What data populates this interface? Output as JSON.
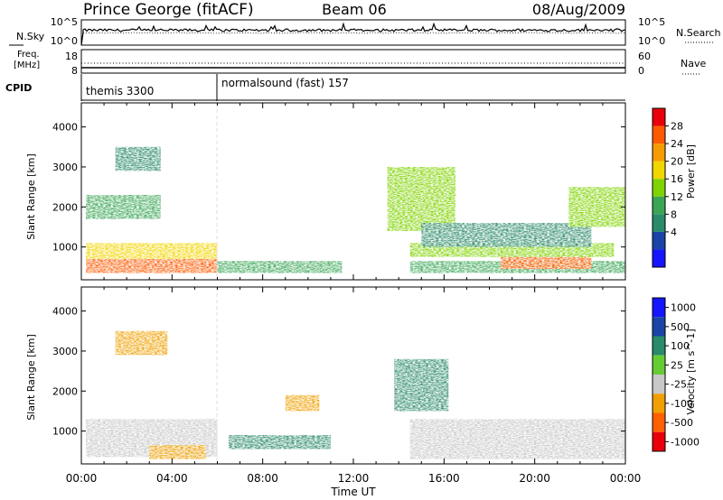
{
  "header": {
    "title": "Prince George (fitACF)",
    "beam": "Beam 06",
    "date": "08/Aug/2009"
  },
  "noise_panel": {
    "left_label": "N.Sky",
    "left_ticks": [
      "10^5",
      "10^0"
    ],
    "right_ticks": [
      "10^5",
      "10^0"
    ],
    "right_label": "N.Search"
  },
  "freq_panel": {
    "left_label_line1": "Freq.",
    "left_label_line2": "[MHz]",
    "left_ticks": [
      "18",
      "8"
    ],
    "right_ticks": [
      "60",
      "0"
    ],
    "right_label": "Nave"
  },
  "cpid_panel": {
    "label": "CPID",
    "segments": [
      {
        "name": "themis 3300",
        "start_h": 0
      },
      {
        "name": "normalsound (fast) 157",
        "start_h": 6
      }
    ]
  },
  "axes": {
    "ylabel": "Slant Range [km]",
    "xlabel": "Time UT",
    "yticks": [
      "4000",
      "3000",
      "2000",
      "1000"
    ],
    "xticks": [
      "00:00",
      "04:00",
      "08:00",
      "12:00",
      "16:00",
      "20:00",
      "00:00"
    ]
  },
  "power_colorbar": {
    "title": "Power [dB]",
    "ticks": [
      "28",
      "24",
      "20",
      "16",
      "12",
      "8",
      "4"
    ],
    "colors": [
      "#e8000b",
      "#ff5a00",
      "#f59b00",
      "#f2d600",
      "#7fd400",
      "#3aa655",
      "#2a8a6a",
      "#1a44a8",
      "#1515ff"
    ]
  },
  "velocity_colorbar": {
    "title": "Velocity [m s^-1]",
    "ticks": [
      "1000",
      "500",
      "100",
      "25",
      "-25",
      "-100",
      "-500",
      "-1000"
    ],
    "colors": [
      "#1515ff",
      "#1a44a8",
      "#2a8a6a",
      "#66cc33",
      "#c8c8c8",
      "#f0a000",
      "#ff6000",
      "#e8000b"
    ]
  },
  "chart_data": {
    "type": "heatmap",
    "title": "Prince George (fitACF)",
    "xlabel": "Time UT",
    "ylabel": "Slant Range [km]",
    "xlim_hours": [
      0,
      24
    ],
    "ylim_km": [
      180,
      4600
    ],
    "grid": false,
    "panels": [
      {
        "name": "Power [dB]",
        "clim": [
          0,
          30
        ],
        "regions": [
          {
            "t": [
              0.2,
              6.0
            ],
            "r": [
              350,
              700
            ],
            "level": 26
          },
          {
            "t": [
              0.2,
              6.0
            ],
            "r": [
              700,
              1100
            ],
            "level": 18
          },
          {
            "t": [
              6.0,
              11.5
            ],
            "r": [
              350,
              650
            ],
            "level": 10
          },
          {
            "t": [
              14.5,
              24.0
            ],
            "r": [
              350,
              650
            ],
            "level": 12
          },
          {
            "t": [
              18.5,
              22.5
            ],
            "r": [
              450,
              750
            ],
            "level": 26
          },
          {
            "t": [
              14.5,
              23.5
            ],
            "r": [
              750,
              1100
            ],
            "level": 16
          },
          {
            "t": [
              0.2,
              3.5
            ],
            "r": [
              1700,
              2300
            ],
            "level": 12
          },
          {
            "t": [
              1.5,
              3.5
            ],
            "r": [
              2900,
              3500
            ],
            "level": 6
          },
          {
            "t": [
              13.5,
              16.5
            ],
            "r": [
              1400,
              3000
            ],
            "level": 14
          },
          {
            "t": [
              15.0,
              22.5
            ],
            "r": [
              1000,
              1600
            ],
            "level": 8
          },
          {
            "t": [
              21.5,
              24.0
            ],
            "r": [
              1500,
              2500
            ],
            "level": 14
          }
        ]
      },
      {
        "name": "Velocity [m s^-1]",
        "clim": [
          -1000,
          1000
        ],
        "regions": [
          {
            "t": [
              0.2,
              6.0
            ],
            "r": [
              350,
              1300
            ],
            "level": 0
          },
          {
            "t": [
              3.0,
              5.5
            ],
            "r": [
              300,
              650
            ],
            "level": -100
          },
          {
            "t": [
              6.5,
              11.0
            ],
            "r": [
              550,
              900
            ],
            "level": 100
          },
          {
            "t": [
              14.5,
              24.0
            ],
            "r": [
              300,
              1300
            ],
            "level": 0
          },
          {
            "t": [
              13.8,
              16.2
            ],
            "r": [
              1500,
              2800
            ],
            "level": 100
          },
          {
            "t": [
              9.0,
              10.5
            ],
            "r": [
              1500,
              1900
            ],
            "level": -100
          },
          {
            "t": [
              1.5,
              3.8
            ],
            "r": [
              2900,
              3500
            ],
            "level": -100
          }
        ]
      }
    ]
  }
}
